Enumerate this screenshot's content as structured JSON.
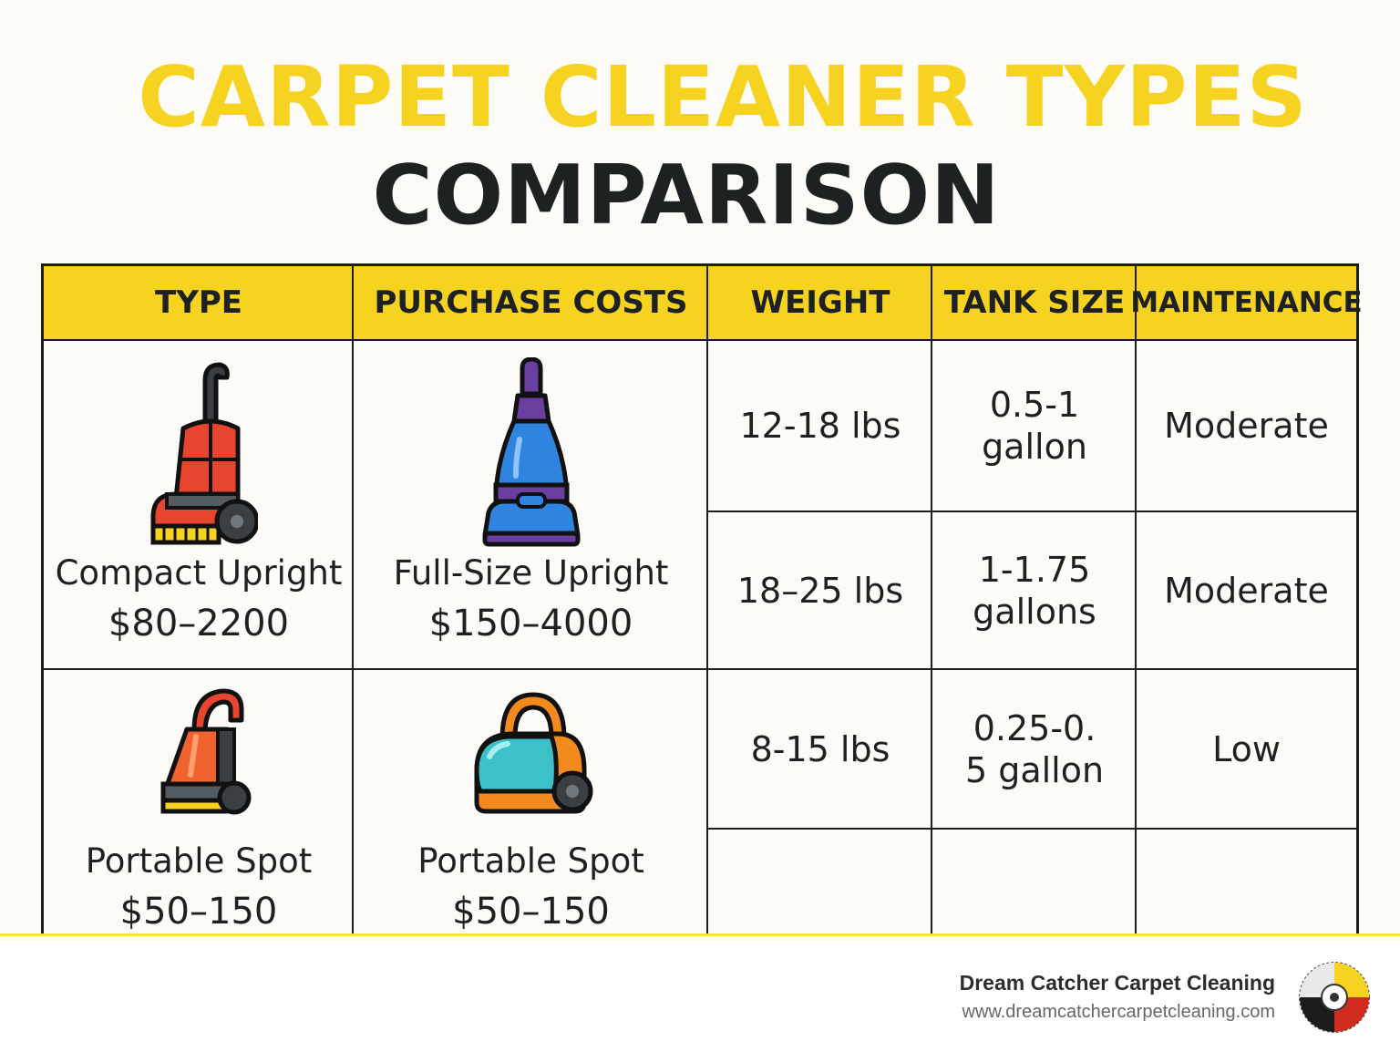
{
  "title": {
    "line1": "CARPET CLEANER TYPES",
    "line2": "COMPARISON"
  },
  "headers": [
    "TYPE",
    "PURCHASE COSTS",
    "WEIGHT",
    "TANK SIZE",
    "MAINTENANCE"
  ],
  "products": {
    "compact": {
      "name": "Compact Upright",
      "price": "$80–2200",
      "icon": "compact-upright-cleaner-icon"
    },
    "fullsize": {
      "name": "Full-Size Upright",
      "price": "$150–4000",
      "icon": "full-size-upright-cleaner-icon"
    },
    "spot1": {
      "name": "Portable Spot",
      "price": "$50–150",
      "icon": "portable-spot-cleaner-icon"
    },
    "spot2": {
      "name": "Portable Spot",
      "price": "$50–150",
      "icon": "portable-canister-cleaner-icon"
    }
  },
  "rows": [
    {
      "weight": "12-18 lbs",
      "tank": "0.5-1 gallon",
      "maintenance": "Moderate"
    },
    {
      "weight": "18–25 lbs",
      "tank": "1-1.75 gallons",
      "maintenance": "Moderate"
    },
    {
      "weight": "8-15 lbs",
      "tank": "0.25-0. 5 gallon",
      "maintenance": "Low"
    }
  ],
  "footer": {
    "brand": "Dream Catcher Carpet Cleaning",
    "url": "www.dreamcatchercarpetcleaning.com",
    "logo_icon": "dreamcatcher-logo-icon"
  },
  "colors": {
    "accent": "#f5d320",
    "text": "#1e2122",
    "background": "#fdfbf7"
  }
}
